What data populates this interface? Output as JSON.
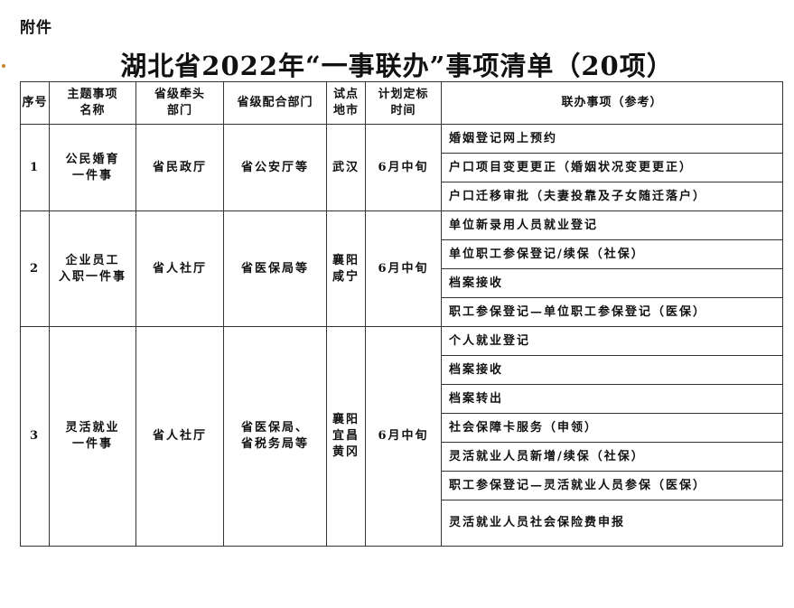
{
  "attachment_label": "附件",
  "title": "湖北省2022年“一事联办”事项清单（20项）",
  "table": {
    "headers": {
      "no": "序号",
      "topic_1": "主题事项",
      "topic_2": "名称",
      "lead_1": "省级牵头",
      "lead_2": "部门",
      "coop": "省级配合部门",
      "pilot_1": "试点",
      "pilot_2": "地市",
      "time_1": "计划定标",
      "time_2": "时间",
      "items": "联办事项（参考）"
    },
    "groups": [
      {
        "no": "1",
        "topic_1": "公民婚育",
        "topic_2": "一件事",
        "lead": "省民政厅",
        "coop_1": "省公安厅等",
        "coop_2": "",
        "pilot_1": "武汉",
        "pilot_2": "",
        "pilot_3": "",
        "time": "6月中旬",
        "items": [
          "婚姻登记网上预约",
          "户口项目变更更正（婚姻状况变更更正）",
          "户口迁移审批（夫妻投靠及子女随迁落户）"
        ]
      },
      {
        "no": "2",
        "topic_1": "企业员工",
        "topic_2": "入职一件事",
        "lead": "省人社厅",
        "coop_1": "省医保局等",
        "coop_2": "",
        "pilot_1": "襄阳",
        "pilot_2": "咸宁",
        "pilot_3": "",
        "time": "6月中旬",
        "items": [
          "单位新录用人员就业登记",
          "单位职工参保登记/续保（社保）",
          "档案接收",
          "职工参保登记—单位职工参保登记（医保）"
        ]
      },
      {
        "no": "3",
        "topic_1": "灵活就业",
        "topic_2": "一件事",
        "lead": "省人社厅",
        "coop_1": "省医保局、",
        "coop_2": "省税务局等",
        "pilot_1": "襄阳",
        "pilot_2": "宜昌",
        "pilot_3": "黄冈",
        "time": "6月中旬",
        "items": [
          "个人就业登记",
          "档案接收",
          "档案转出",
          "社会保障卡服务（申领）",
          "灵活就业人员新增/续保（社保）",
          "职工参保登记—灵活就业人员参保（医保）",
          "灵活就业人员社会保险费申报"
        ]
      }
    ]
  }
}
